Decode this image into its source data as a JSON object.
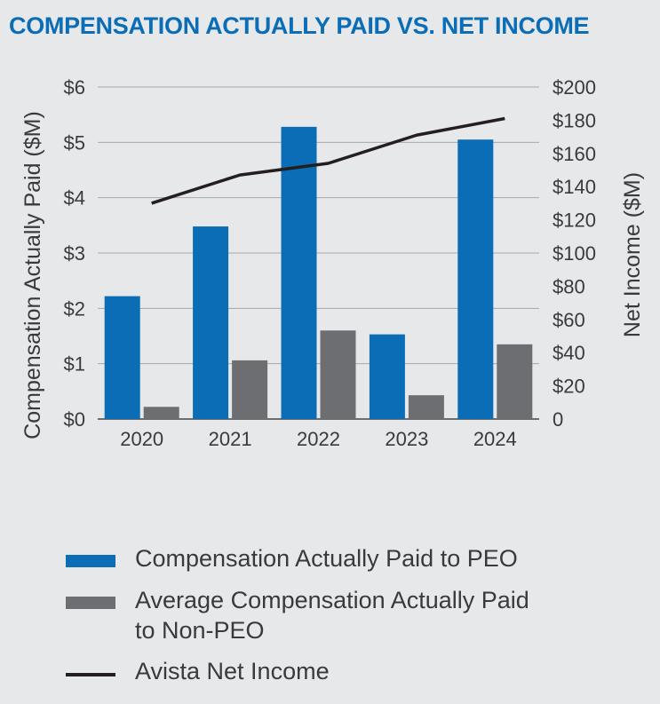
{
  "chart_data": {
    "type": "bar+line",
    "title": "COMPENSATION ACTUALLY PAID VS. NET INCOME",
    "categories": [
      "2020",
      "2021",
      "2022",
      "2023",
      "2024"
    ],
    "ylabel_left": "Compensation Actually Paid ($M)",
    "ylabel_right": "Net Income ($M)",
    "ylim_left": [
      0,
      6
    ],
    "ylim_right": [
      0,
      200
    ],
    "yticks_left": [
      "$0",
      "$1",
      "$2",
      "$3",
      "$4",
      "$5",
      "$6"
    ],
    "yticks_right": [
      "0",
      "$20",
      "$40",
      "$60",
      "$80",
      "$100",
      "$120",
      "$140",
      "$160",
      "$180",
      "$200"
    ],
    "grid": true,
    "series": [
      {
        "name": "Compensation Actually Paid to PEO",
        "type": "bar",
        "axis": "left",
        "color": "#0a6db5",
        "values": [
          2.22,
          3.48,
          5.28,
          1.53,
          5.05
        ]
      },
      {
        "name": "Average Compensation Actually Paid to Non-PEO",
        "type": "bar",
        "axis": "left",
        "color": "#6d6e71",
        "values": [
          0.22,
          1.06,
          1.6,
          0.43,
          1.35
        ]
      },
      {
        "name": "Avista Net Income",
        "type": "line",
        "axis": "right",
        "color": "#231f20",
        "values": [
          130,
          147,
          154,
          171,
          181
        ]
      }
    ]
  },
  "legend": {
    "items": [
      {
        "label_lines": [
          "Compensation Actually Paid to PEO"
        ],
        "color": "#0a6db5",
        "kind": "bar"
      },
      {
        "label_lines": [
          "Average Compensation Actually Paid",
          "to Non-PEO"
        ],
        "color": "#6d6e71",
        "kind": "bar"
      },
      {
        "label_lines": [
          "Avista Net Income"
        ],
        "color": "#231f20",
        "kind": "line"
      }
    ]
  }
}
